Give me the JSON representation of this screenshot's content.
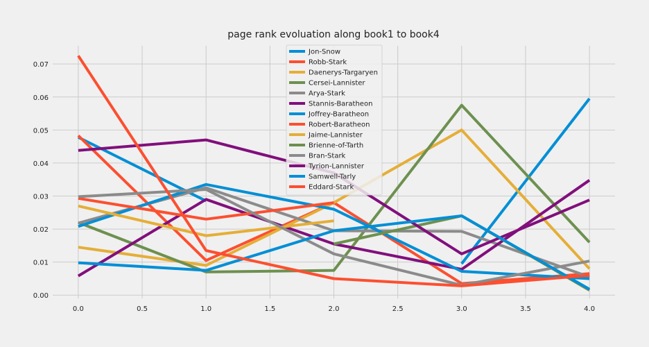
{
  "chart_data": {
    "type": "line",
    "title": "page rank evoluation along book1 to book4",
    "xlabel": "",
    "ylabel": "",
    "xlim": [
      -0.2,
      4.2
    ],
    "ylim": [
      -0.001,
      0.0755
    ],
    "x_ticks": [
      "0.0",
      "0.5",
      "1.0",
      "1.5",
      "2.0",
      "2.5",
      "3.0",
      "3.5",
      "4.0"
    ],
    "y_ticks": [
      "0.00",
      "0.01",
      "0.02",
      "0.03",
      "0.04",
      "0.05",
      "0.06",
      "0.07"
    ],
    "grid": true,
    "legend_position": "top-center",
    "x": [
      0,
      1,
      2,
      3,
      4
    ],
    "series": [
      {
        "name": "Jon-Snow",
        "color": "#008fd5",
        "values": [
          0.0478,
          0.0285,
          null,
          0.0095,
          0.0595
        ]
      },
      {
        "name": "Robb-Stark",
        "color": "#fc4f30",
        "values": [
          0.0483,
          0.0105,
          0.028,
          0.0035,
          0.0065
        ]
      },
      {
        "name": "Daenerys-Targaryen",
        "color": "#e5ae38",
        "values": [
          0.0145,
          0.009,
          0.028,
          0.05,
          0.008
        ]
      },
      {
        "name": "Cersei-Lannister",
        "color": "#6d904f",
        "values": [
          0.022,
          0.007,
          0.0075,
          0.0575,
          0.016
        ]
      },
      {
        "name": "Arya-Stark",
        "color": "#8b8b8b",
        "values": [
          0.0218,
          0.0325,
          0.0195,
          0.0193,
          0.0055
        ]
      },
      {
        "name": "Stannis-Baratheon",
        "color": "#810f7c",
        "values": [
          0.0058,
          0.029,
          0.0155,
          0.0078,
          0.0348
        ]
      },
      {
        "name": "Joffrey-Baratheon",
        "color": "#008fd5",
        "values": [
          0.0208,
          0.0335,
          0.026,
          0.0072,
          0.005
        ]
      },
      {
        "name": "Robert-Baratheon",
        "color": "#fc4f30",
        "values": [
          0.0293,
          0.023,
          0.028,
          null,
          null
        ]
      },
      {
        "name": "Jaime-Lannister",
        "color": "#e5ae38",
        "values": [
          0.027,
          0.018,
          0.0225,
          null,
          null
        ]
      },
      {
        "name": "Brienne-of-Tarth",
        "color": "#6d904f",
        "values": [
          null,
          null,
          0.0155,
          0.024,
          0.0015
        ]
      },
      {
        "name": "Bran-Stark",
        "color": "#8b8b8b",
        "values": [
          0.0298,
          0.032,
          0.0125,
          0.003,
          0.0103
        ]
      },
      {
        "name": "Tyrion-Lannister",
        "color": "#810f7c",
        "values": [
          0.0438,
          0.047,
          0.037,
          0.0125,
          0.0288
        ]
      },
      {
        "name": "Samwell-Tarly",
        "color": "#008fd5",
        "values": [
          0.0098,
          0.0075,
          0.0195,
          0.024,
          0.0018
        ]
      },
      {
        "name": "Eddard-Stark",
        "color": "#fc4f30",
        "values": [
          0.0725,
          0.0135,
          0.005,
          0.0028,
          0.006
        ]
      }
    ]
  }
}
